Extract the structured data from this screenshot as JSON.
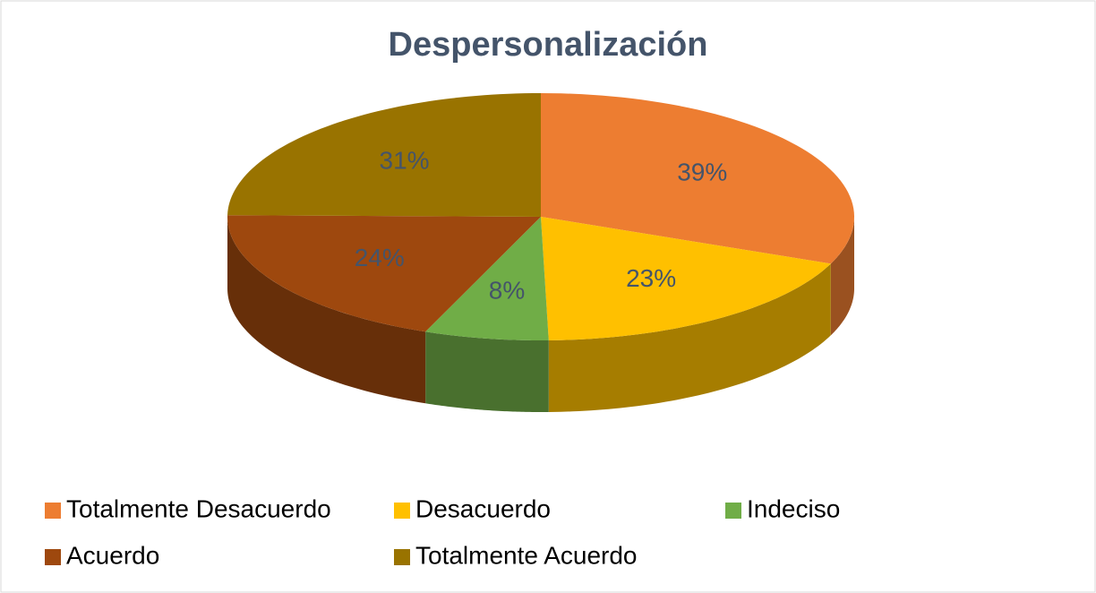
{
  "chart_data": {
    "type": "pie3d",
    "title": "Despersonalización",
    "categories": [
      "Totalmente Desacuerdo",
      "Desacuerdo",
      "Indeciso",
      "Acuerdo",
      "Totalmente Acuerdo"
    ],
    "values": [
      39,
      23,
      8,
      24,
      31
    ],
    "value_labels": [
      "39%",
      "23%",
      "8%",
      "24%",
      "31%"
    ],
    "colors": [
      "#ed7d31",
      "#ffc000",
      "#70ad47",
      "#9e480e",
      "#997300"
    ],
    "legend": "bottom"
  }
}
